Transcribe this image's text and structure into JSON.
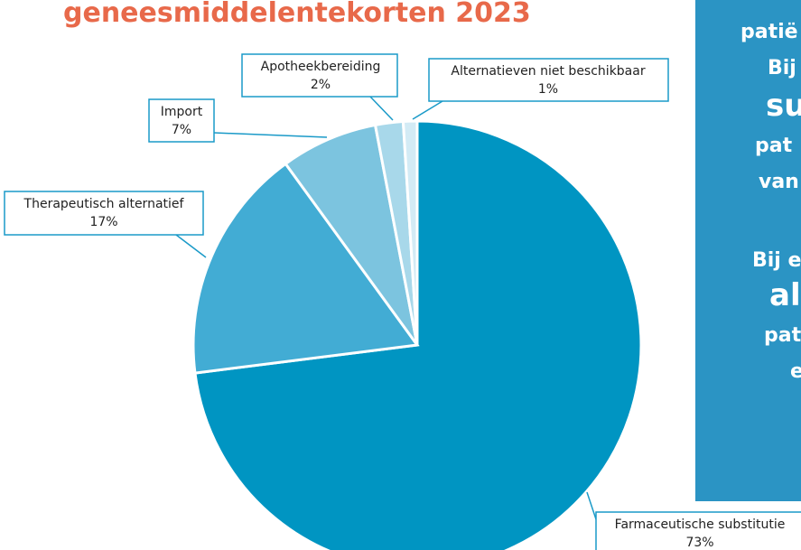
{
  "chart_data": {
    "type": "pie",
    "title": "geneesmiddelentekorten 2023",
    "categories": [
      "Farmaceutische substitutie",
      "Therapeutisch alternatief",
      "Import",
      "Apotheekbereiding",
      "Alternatieven niet beschikbaar"
    ],
    "values": [
      73,
      17,
      7,
      2,
      1
    ],
    "value_labels": [
      "73%",
      "17%",
      "7%",
      "2%",
      "1%"
    ],
    "colors": [
      "#0095c2",
      "#42acd4",
      "#7cc4df",
      "#a8d8ea",
      "#d3ebf5"
    ]
  },
  "side_panel": {
    "lines": [
      "patië",
      "Bij",
      "su",
      "pat",
      "van",
      "Bij e",
      "al",
      "pat",
      "e"
    ]
  }
}
